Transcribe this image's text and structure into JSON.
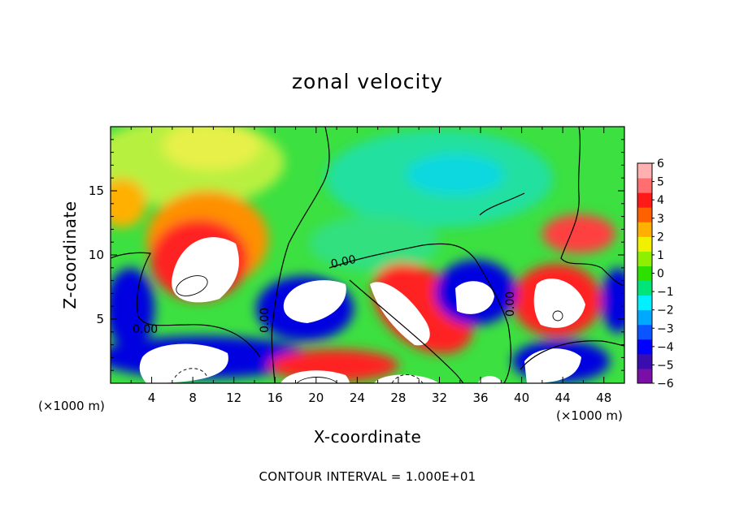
{
  "chart_data": {
    "type": "heatmap",
    "title": "zonal velocity",
    "xlabel": "X-coordinate",
    "ylabel": "Z-coordinate",
    "x_unit": "(×1000 m)",
    "x_unit_right": "(×1000 m)",
    "xlim": [
      0,
      50
    ],
    "ylim": [
      0,
      20
    ],
    "x_ticks": [
      4,
      8,
      12,
      16,
      20,
      24,
      28,
      32,
      36,
      40,
      44,
      48
    ],
    "y_ticks": [
      5,
      10,
      15
    ],
    "colorbar": {
      "min": -6,
      "max": 6,
      "ticks": [
        6,
        5,
        4,
        3,
        2,
        1,
        0,
        -1,
        -2,
        -3,
        -4,
        -5,
        -6
      ],
      "colors": [
        "#7a0fa8",
        "#3a0db0",
        "#0000ff",
        "#0a55ff",
        "#00a8ff",
        "#00f0ff",
        "#00e47a",
        "#2de000",
        "#90ee00",
        "#f0f000",
        "#ffb000",
        "#ff6000",
        "#ff1a1a",
        "#ff6f6f",
        "#ffb0b0"
      ]
    },
    "contour_label": "0.00",
    "contour_interval_text": "CONTOUR INTERVAL =   1.000E+01"
  },
  "colors": {
    "background": "#3ce040",
    "upper_field": "#6ee640",
    "positive_jet": "#ff2a2a",
    "negative_jet": "#0000e0",
    "saturated": "#ffffff",
    "contour": "#000000"
  }
}
